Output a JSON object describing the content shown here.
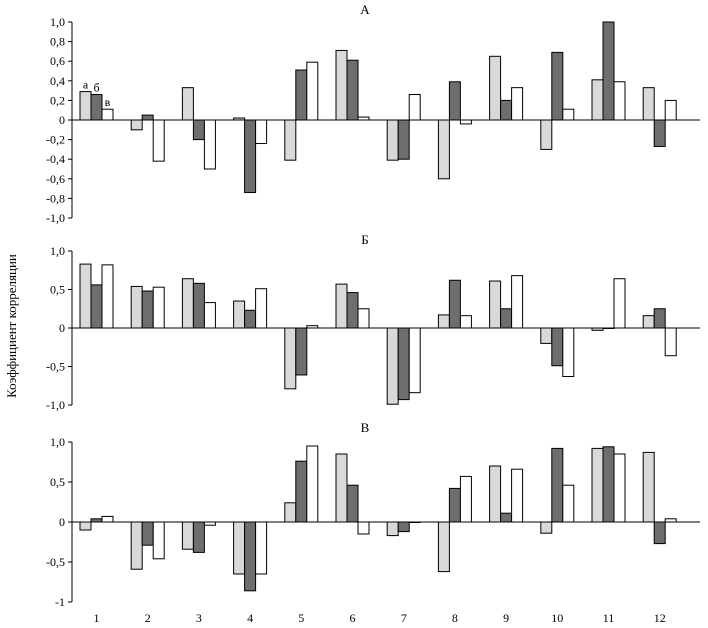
{
  "chart_data": {
    "type": "bar",
    "ylabel": "Коэффициент корреляции",
    "categories": [
      "1",
      "2",
      "3",
      "4",
      "5",
      "6",
      "7",
      "8",
      "9",
      "10",
      "11",
      "12"
    ],
    "series_colors": {
      "а": "#d9d9d9",
      "б": "#6e6e6e",
      "в": "#ffffff"
    },
    "bar_labels": [
      "а",
      "б",
      "в"
    ],
    "panels": [
      {
        "title": "А",
        "ylim": [
          -1.0,
          1.0
        ],
        "yticks": [
          {
            "v": 1.0,
            "t": "1,0"
          },
          {
            "v": 0.8,
            "t": "0,8"
          },
          {
            "v": 0.6,
            "t": "0,6"
          },
          {
            "v": 0.4,
            "t": "0,4"
          },
          {
            "v": 0.2,
            "t": "0,2"
          },
          {
            "v": 0,
            "t": "0"
          },
          {
            "v": -0.2,
            "t": "-0,2"
          },
          {
            "v": -0.4,
            "t": "-0,4"
          },
          {
            "v": -0.6,
            "t": "-0,6"
          },
          {
            "v": -0.8,
            "t": "-0,8"
          },
          {
            "v": -1.0,
            "t": "-1,0"
          }
        ],
        "series": [
          {
            "name": "а",
            "values": [
              0.29,
              -0.1,
              0.33,
              0.02,
              -0.41,
              0.71,
              -0.41,
              -0.6,
              0.65,
              -0.3,
              0.41,
              0.33
            ]
          },
          {
            "name": "б",
            "values": [
              0.26,
              0.05,
              -0.2,
              -0.74,
              0.51,
              0.61,
              -0.4,
              0.39,
              0.2,
              0.69,
              1.0,
              -0.27
            ]
          },
          {
            "name": "в",
            "values": [
              0.11,
              -0.42,
              -0.5,
              -0.24,
              0.59,
              0.03,
              0.26,
              -0.04,
              0.33,
              0.11,
              0.39,
              0.2
            ]
          }
        ]
      },
      {
        "title": "Б",
        "ylim": [
          -1.0,
          1.0
        ],
        "yticks": [
          {
            "v": 1.0,
            "t": "1,0"
          },
          {
            "v": 0.5,
            "t": "0,5"
          },
          {
            "v": 0,
            "t": "0"
          },
          {
            "v": -0.5,
            "t": "-0,5"
          },
          {
            "v": -1.0,
            "t": "-1,0"
          }
        ],
        "series": [
          {
            "name": "а",
            "values": [
              0.83,
              0.54,
              0.64,
              0.35,
              -0.79,
              0.57,
              -0.99,
              0.17,
              0.61,
              -0.2,
              -0.03,
              0.16
            ]
          },
          {
            "name": "б",
            "values": [
              0.56,
              0.48,
              0.58,
              0.23,
              -0.61,
              0.46,
              -0.93,
              0.62,
              0.25,
              -0.49,
              0.0,
              0.25
            ]
          },
          {
            "name": "в",
            "values": [
              0.82,
              0.53,
              0.33,
              0.51,
              0.03,
              0.25,
              -0.84,
              0.16,
              0.68,
              -0.63,
              0.64,
              -0.36
            ]
          }
        ]
      },
      {
        "title": "В",
        "ylim": [
          -1.0,
          1.0
        ],
        "yticks": [
          {
            "v": 1.0,
            "t": "1,0"
          },
          {
            "v": 0.5,
            "t": "0,5"
          },
          {
            "v": 0,
            "t": "0"
          },
          {
            "v": -0.5,
            "t": "-0,5"
          },
          {
            "v": -1.0,
            "t": "-1"
          }
        ],
        "series": [
          {
            "name": "а",
            "values": [
              -0.1,
              -0.59,
              -0.34,
              -0.65,
              0.24,
              0.85,
              -0.17,
              -0.62,
              0.7,
              -0.14,
              0.92,
              0.87
            ]
          },
          {
            "name": "б",
            "values": [
              0.04,
              -0.29,
              -0.38,
              -0.86,
              0.76,
              0.46,
              -0.12,
              0.42,
              0.11,
              0.92,
              0.94,
              -0.27
            ]
          },
          {
            "name": "в",
            "values": [
              0.07,
              -0.46,
              -0.04,
              -0.65,
              0.95,
              -0.15,
              0.0,
              0.57,
              0.66,
              0.46,
              0.85,
              0.04
            ]
          }
        ]
      }
    ]
  }
}
